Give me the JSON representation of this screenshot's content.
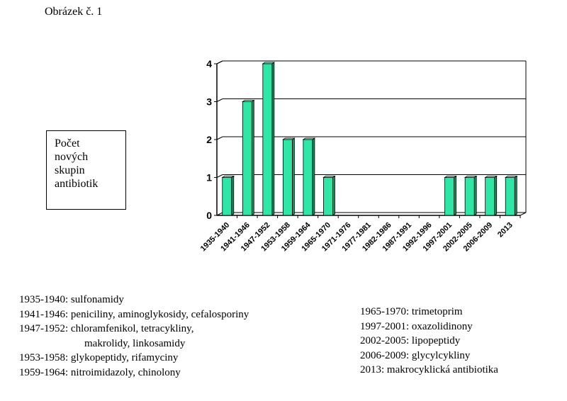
{
  "figure_title": "Obrázek č. 1",
  "ylabel_lines": [
    "Počet",
    "nových",
    "skupin",
    "antibiotik"
  ],
  "chart_data": {
    "type": "bar",
    "categories": [
      "1935-1940",
      "1941-1946",
      "1947-1952",
      "1953-1958",
      "1959-1964",
      "1965-1970",
      "1971-1976",
      "1977-1981",
      "1982-1986",
      "1987-1991",
      "1992-1996",
      "1997-2001",
      "2002-2005",
      "2006-2009",
      "2013"
    ],
    "values": [
      1,
      3,
      4,
      2,
      2,
      1,
      0,
      0,
      0,
      0,
      0,
      1,
      1,
      1,
      1
    ],
    "ylabel": "Počet nových skupin antibiotik",
    "xlabel": "",
    "ylim": [
      0,
      4
    ],
    "yticks": [
      0,
      1,
      2,
      3,
      4
    ],
    "grid": true,
    "bar_color": "#2ee6a6",
    "bar_side_color": "#1a8f62",
    "bar_top_color": "#8ef5d0"
  },
  "legend_left": [
    {
      "text": "1935-1940: sulfonamidy",
      "indent": false
    },
    {
      "text": "1941-1946: peniciliny, aminoglykosidy, cefalosporiny",
      "indent": false
    },
    {
      "text": "1947-1952: chloramfenikol, tetracykliny,",
      "indent": false
    },
    {
      "text": "makrolidy, linkosamidy",
      "indent": true
    },
    {
      "text": "1953-1958: glykopeptidy, rifamyciny",
      "indent": false
    },
    {
      "text": "1959-1964: nitroimidazoly, chinolony",
      "indent": false
    }
  ],
  "legend_right": [
    "1965-1970: trimetoprim",
    "1997-2001: oxazolidinony",
    "2002-2005: lipopeptidy",
    "2006-2009: glycylcykliny",
    "2013: makrocyklická antibiotika"
  ]
}
